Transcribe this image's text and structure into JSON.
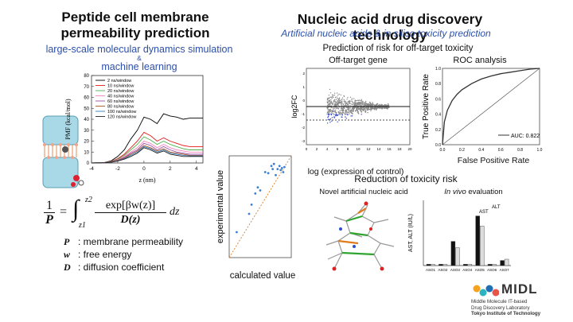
{
  "left": {
    "title_line1": "Peptide cell membrane",
    "title_line2": "permeability prediction",
    "subtitle_line1": "large-scale molecular dynamics simulation",
    "subtitle_amp": "&",
    "subtitle_line2": "machine learning",
    "pmf_ylabel": "PMF (kcal/mol)",
    "pmf_xlabel": "z (nm)",
    "pmf_yticks": [
      "0",
      "10",
      "20",
      "30",
      "40",
      "50",
      "60",
      "70",
      "80"
    ],
    "pmf_xticks": [
      "-4",
      "-2",
      "0",
      "2",
      "4"
    ],
    "pmf_legend": [
      "2 ns/window",
      "10 ns/window",
      "20 ns/window",
      "40 ns/window",
      "60 ns/window",
      "80 ns/window",
      "100 ns/window",
      "120 ns/window"
    ],
    "pmf_colors": [
      "#000000",
      "#e41a1c",
      "#4daf4a",
      "#f781bf",
      "#984ea3",
      "#a65628",
      "#377eb8",
      "#222222"
    ],
    "formula": {
      "lhs_num": "1",
      "lhs_den": "P",
      "int_upper": "z2",
      "int_lower": "z1",
      "numerator": "exp[βw(z)]",
      "denominator": "D(z)",
      "dz": "dz"
    },
    "definitions": [
      {
        "sym": "P",
        "text": ": membrane permeability"
      },
      {
        "sym": "w",
        "text": ": free energy"
      },
      {
        "sym": "D",
        "text": ": diffusion coefficient"
      }
    ],
    "scatter_ylabel": "experimental value",
    "scatter_xlabel": "calculated value"
  },
  "right": {
    "title": "Nucleic acid drug discovery technology",
    "subtitle": "Artificial nucleic acids & in silico toxicity prediction",
    "section1_title": "Prediction of risk for off-target toxicity",
    "offtarget_title": "Off-target gene",
    "offtarget_ylabel": "log2FC",
    "offtarget_xlabel": "log (expression of control)",
    "offtarget_xticks": [
      "0",
      "2",
      "4",
      "6",
      "8",
      "10",
      "12",
      "14",
      "16",
      "18",
      "20"
    ],
    "offtarget_yticks": [
      "2",
      "1",
      "0",
      "-1",
      "-2",
      "-3"
    ],
    "roc_title": "ROC analysis",
    "roc_ylabel": "True Positive Rate",
    "roc_xlabel": "False Positive Rate",
    "roc_xticks": [
      "0.0",
      "0.2",
      "0.4",
      "0.6",
      "0.8",
      "1.0"
    ],
    "roc_yticks": [
      "0.0",
      "0.2",
      "0.4",
      "0.6",
      "0.8",
      "1.0"
    ],
    "roc_legend": "AUC: 0.822",
    "section2_title": "Reduction of toxicity risk",
    "nucleic_label": "Novel artificial nucleic acid",
    "invivo_italic": "In vivo",
    "invivo_rest": " evaluation",
    "bar_ylabel": "AST, ALT (IU/L)",
    "bar_categories": [
      "ASO1",
      "ASO2",
      "ASO3",
      "ASO4",
      "ASO5",
      "ASO6",
      "ASO7"
    ],
    "bar_ast_label": "AST",
    "bar_alt_label": "ALT"
  },
  "logo": {
    "name": "MIDL",
    "line1": "Middle Molecule IT-based",
    "line2": "Drug Discovery Laboratory",
    "line3": "Tokyo Institute of Technology",
    "colors": [
      "#f7a21b",
      "#2bb3c0",
      "#1f6fb5",
      "#e8534a"
    ]
  },
  "chart_data": [
    {
      "type": "line",
      "ylabel": "PMF (kcal/mol)",
      "xlabel": "z (nm)",
      "xlim": [
        -4,
        4.5
      ],
      "ylim": [
        0,
        80
      ],
      "series": [
        {
          "name": "2 ns/window",
          "x": [
            -4,
            -3,
            -2.5,
            -2,
            -1.5,
            -1,
            -0.5,
            0,
            0.5,
            1,
            1.5,
            2,
            2.5,
            3,
            3.5,
            4,
            4.5
          ],
          "y": [
            0,
            0.5,
            2,
            6,
            12,
            22,
            30,
            42,
            40,
            36,
            45,
            43,
            42,
            40,
            41,
            41,
            41
          ]
        },
        {
          "name": "10 ns/window",
          "x": [
            -4,
            -3,
            -2.5,
            -2,
            -1.5,
            -1,
            -0.5,
            0,
            0.5,
            1,
            1.5,
            2,
            2.5,
            3,
            3.5,
            4,
            4.5
          ],
          "y": [
            0,
            0.3,
            1.5,
            4,
            8,
            14,
            20,
            28,
            25,
            20,
            23,
            20,
            18,
            16,
            15,
            15,
            15
          ]
        },
        {
          "name": "20 ns/window",
          "x": [
            -4,
            -3,
            -2.5,
            -2,
            -1.5,
            -1,
            -0.5,
            0,
            0.5,
            1,
            1.5,
            2,
            2.5,
            3,
            3.5,
            4,
            4.5
          ],
          "y": [
            0,
            0.3,
            1.3,
            3.5,
            7,
            12,
            17,
            24,
            21,
            17,
            20,
            17,
            15,
            13,
            12,
            12,
            12
          ]
        },
        {
          "name": "40 ns/window",
          "x": [
            -4,
            -3,
            -2.5,
            -2,
            -1.5,
            -1,
            -0.5,
            0,
            0.5,
            1,
            1.5,
            2,
            2.5,
            3,
            3.5,
            4,
            4.5
          ],
          "y": [
            0,
            0.2,
            1.1,
            3,
            6,
            10,
            14,
            20,
            18,
            14,
            17,
            14,
            12,
            11,
            10,
            10,
            10
          ]
        },
        {
          "name": "60 ns/window",
          "x": [
            -4,
            -3,
            -2.5,
            -2,
            -1.5,
            -1,
            -0.5,
            0,
            0.5,
            1,
            1.5,
            2,
            2.5,
            3,
            3.5,
            4,
            4.5
          ],
          "y": [
            0,
            0.2,
            1,
            2.5,
            5,
            9,
            12,
            18,
            16,
            12,
            15,
            12,
            10,
            9,
            8,
            8,
            8
          ]
        },
        {
          "name": "80 ns/window",
          "x": [
            -4,
            -3,
            -2.5,
            -2,
            -1.5,
            -1,
            -0.5,
            0,
            0.5,
            1,
            1.5,
            2,
            2.5,
            3,
            3.5,
            4,
            4.5
          ],
          "y": [
            0,
            0.2,
            0.9,
            2.2,
            4.5,
            8,
            11,
            16,
            14,
            11,
            13,
            10,
            9,
            8,
            7,
            7,
            7
          ]
        },
        {
          "name": "100 ns/window",
          "x": [
            -4,
            -3,
            -2.5,
            -2,
            -1.5,
            -1,
            -0.5,
            0,
            0.5,
            1,
            1.5,
            2,
            2.5,
            3,
            3.5,
            4,
            4.5
          ],
          "y": [
            0,
            0.2,
            0.8,
            2,
            4,
            7,
            10,
            15,
            13,
            10,
            12,
            9,
            8,
            7,
            6.5,
            6.5,
            6.5
          ]
        },
        {
          "name": "120 ns/window",
          "x": [
            -4,
            -3,
            -2.5,
            -2,
            -1.5,
            -1,
            -0.5,
            0,
            0.5,
            1,
            1.5,
            2,
            2.5,
            3,
            3.5,
            4,
            4.5
          ],
          "y": [
            0,
            0.2,
            0.7,
            1.8,
            3.5,
            6,
            9,
            14,
            12,
            9,
            11,
            8,
            7,
            6,
            6,
            6,
            6
          ]
        }
      ]
    },
    {
      "type": "scatter",
      "xlabel": "calculated value",
      "ylabel": "experimental value",
      "xlim": [
        0,
        10
      ],
      "ylim": [
        0,
        10
      ],
      "x": [
        1.2,
        3.2,
        3.6,
        4.2,
        4.6,
        5.0,
        5.8,
        6.3,
        6.8,
        7.0,
        7.2,
        7.5,
        7.8,
        8.1,
        8.3,
        8.5,
        8.7,
        8.9
      ],
      "y": [
        2.5,
        4.3,
        5.2,
        6.3,
        6.9,
        6.6,
        8.4,
        8.3,
        9.0,
        8.7,
        9.2,
        8.1,
        8.7,
        9.0,
        8.6,
        8.8,
        8.4,
        8.9
      ]
    },
    {
      "type": "scatter",
      "title": "Off-target gene",
      "xlabel": "log (expression of control)",
      "ylabel": "log2FC",
      "xlim": [
        0,
        20
      ],
      "ylim": [
        -3,
        2
      ]
    },
    {
      "type": "line",
      "title": "ROC analysis",
      "xlabel": "False Positive Rate",
      "ylabel": "True Positive Rate",
      "xlim": [
        0,
        1
      ],
      "ylim": [
        0,
        1
      ],
      "series": [
        {
          "name": "AUC: 0.822",
          "x": [
            0,
            0.02,
            0.05,
            0.1,
            0.15,
            0.2,
            0.3,
            0.4,
            0.5,
            0.6,
            0.7,
            0.8,
            0.9,
            1.0
          ],
          "y": [
            0,
            0.3,
            0.45,
            0.58,
            0.66,
            0.72,
            0.8,
            0.86,
            0.9,
            0.93,
            0.95,
            0.97,
            0.99,
            1.0
          ]
        }
      ]
    },
    {
      "type": "bar",
      "ylabel": "AST, ALT (IU/L)",
      "categories": [
        "ASO1",
        "ASO2",
        "ASO3",
        "ASO4",
        "ASO5",
        "ASO6",
        "ASO7"
      ],
      "ylim": [
        0,
        100
      ],
      "series": [
        {
          "name": "AST",
          "values": [
            2,
            2,
            38,
            2,
            78,
            2,
            8
          ]
        },
        {
          "name": "ALT",
          "values": [
            2,
            2,
            28,
            2,
            62,
            2,
            10
          ]
        }
      ]
    }
  ]
}
